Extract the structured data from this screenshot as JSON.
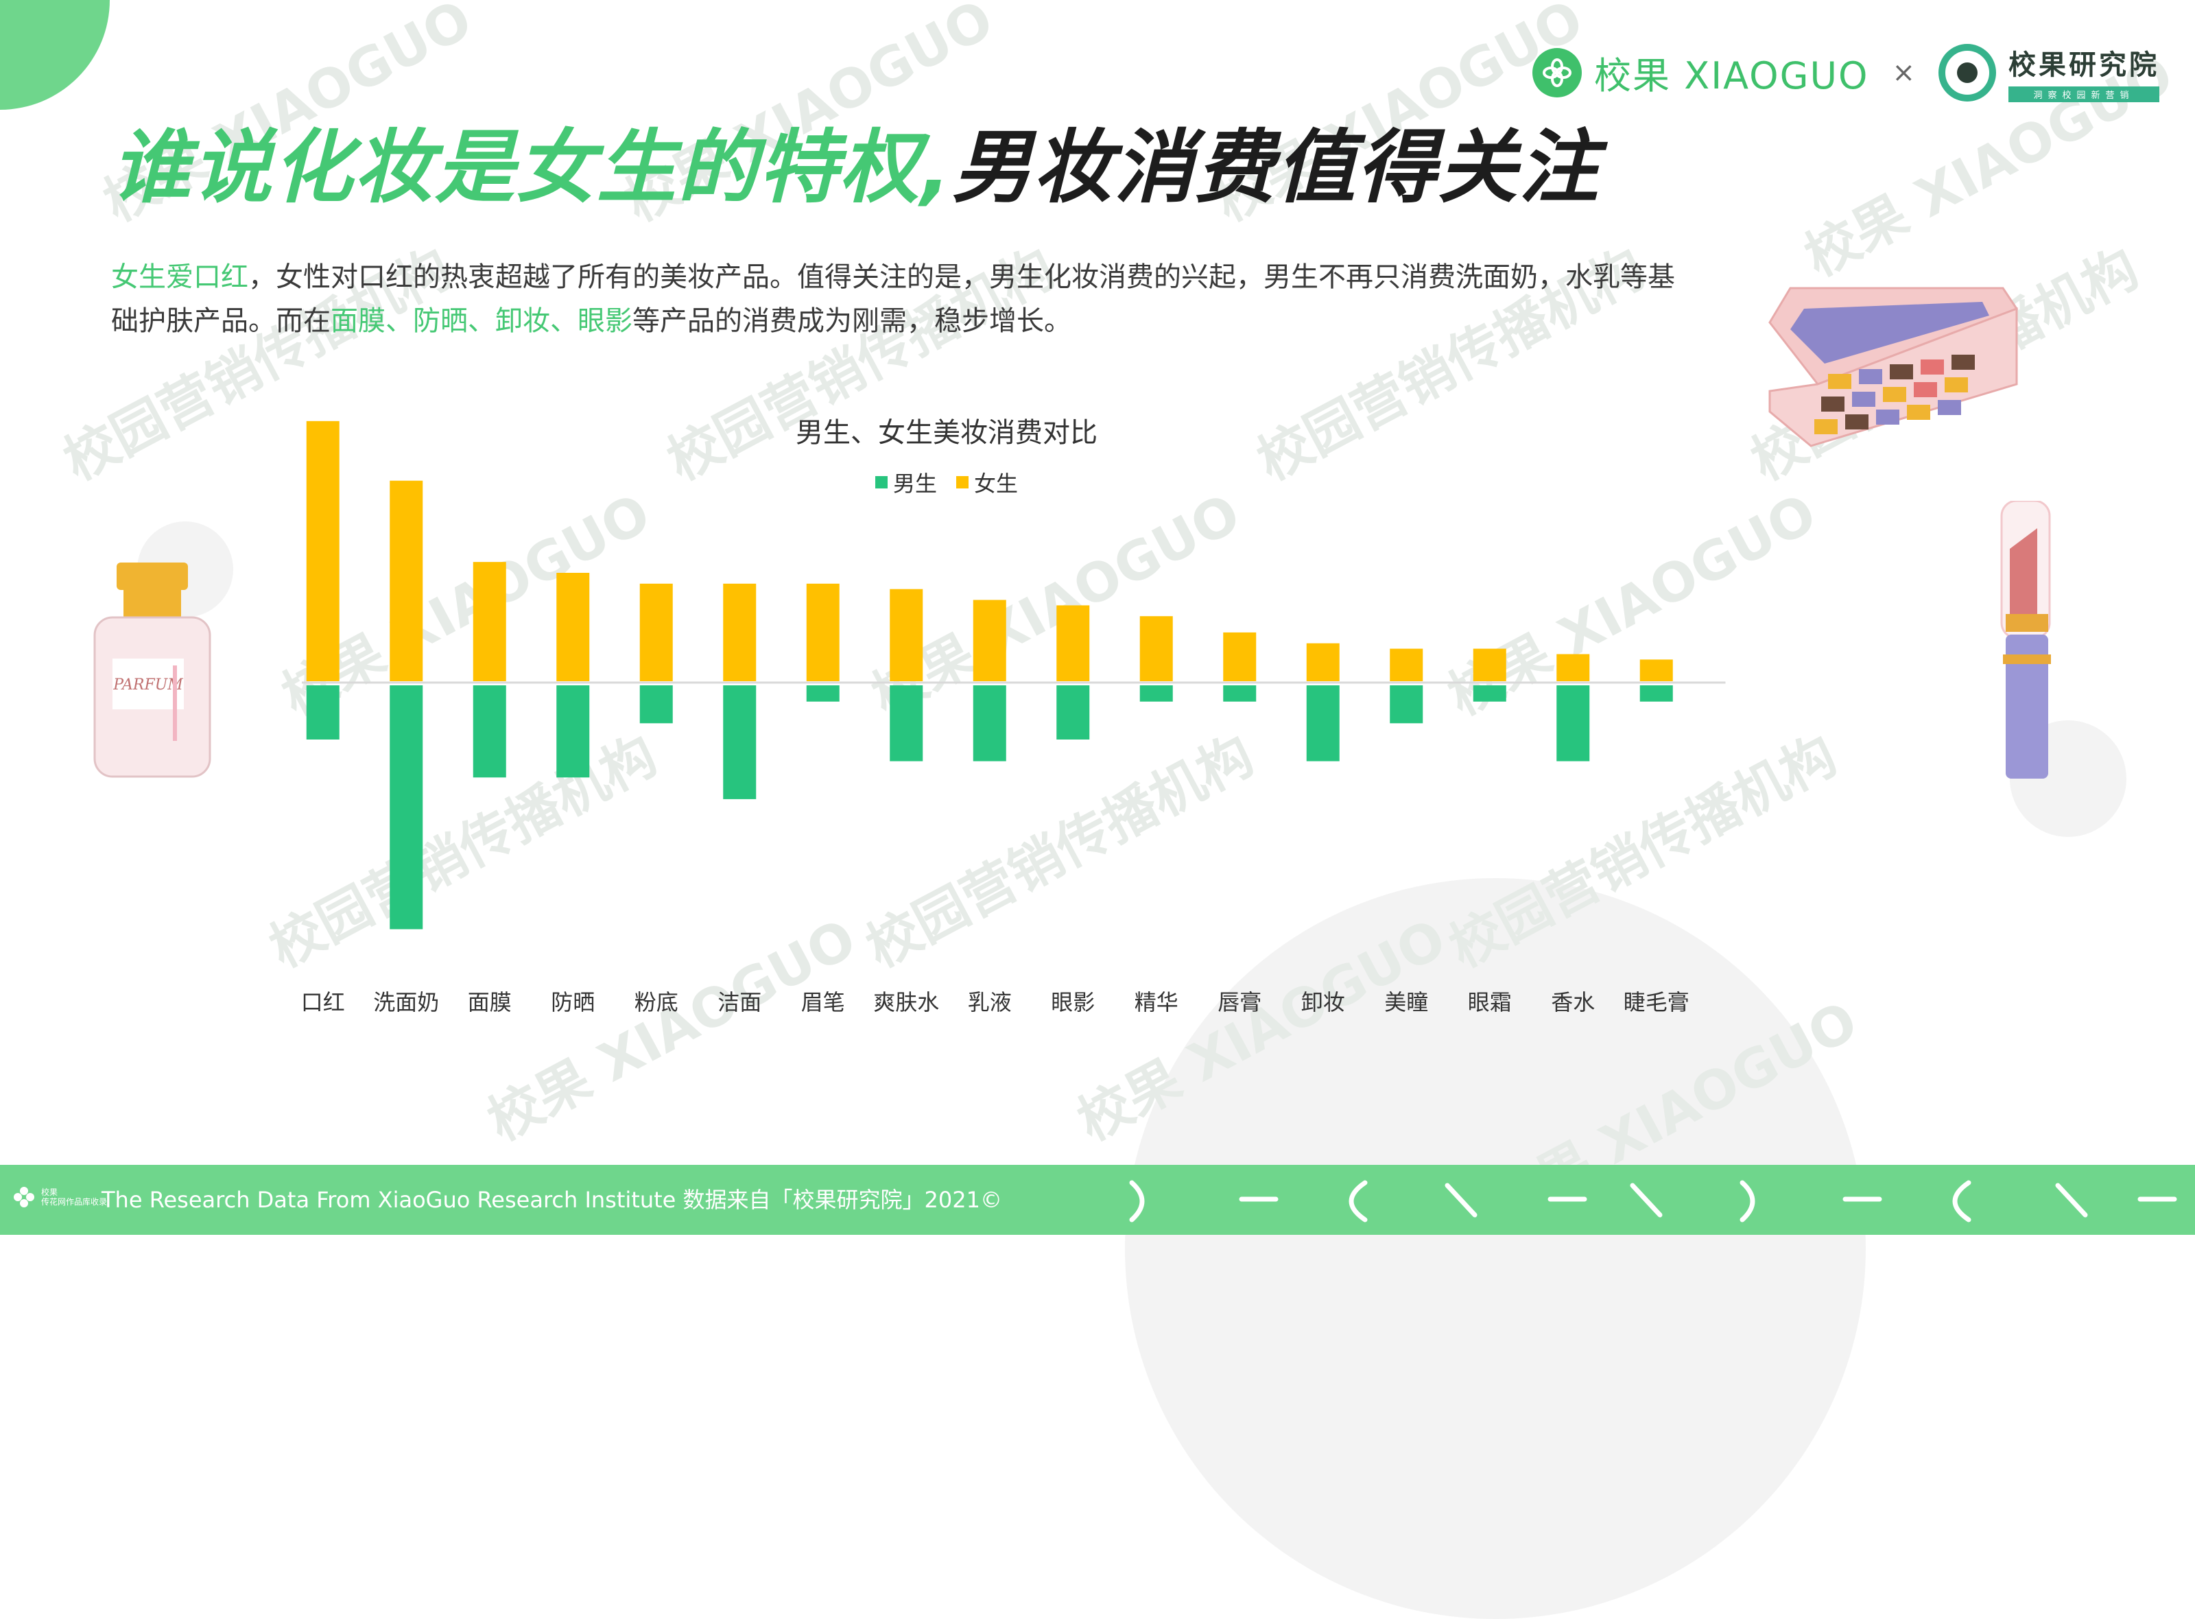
{
  "branding": {
    "logo_name": "校果 XIAOGUO",
    "separator": "×",
    "partner_name": "校果研究院",
    "partner_tagline": "洞察校园新营销",
    "watermark_cn": "校园营销传播机构",
    "watermark_en": "校果 XIAOGUO"
  },
  "title": {
    "part1": "谁说化妆是女生的特权,",
    "part2": "男妆消费值得关注"
  },
  "paragraph": {
    "s1": "女生爱口红",
    "s2": "，女性对口红的热衷超越了所有的美妆产品。值得关注的是，男生化妆消费的兴起，男生不再只消费洗面奶，水乳等基础护肤产品。而在",
    "s3": "面膜、防晒、卸妆、眼影",
    "s4": "等产品的消费成为刚需，稳步增长。"
  },
  "illustrations": {
    "perfume_label": "PARFUM"
  },
  "chart_data": {
    "type": "bar",
    "title": "男生、女生美妆消费对比",
    "categories": [
      "口红",
      "洗面奶",
      "面膜",
      "防晒",
      "粉底",
      "洁面",
      "眉笔",
      "爽肤水",
      "乳液",
      "眼影",
      "精华",
      "唇膏",
      "卸妆",
      "美瞳",
      "眼霜",
      "香水",
      "睫毛膏"
    ],
    "series": [
      {
        "name": "男生",
        "color": "#27c47e",
        "values": [
          -10,
          -45,
          -17,
          -17,
          -7,
          -21,
          -3,
          -14,
          -14,
          -10,
          -3,
          -3,
          -14,
          -7,
          -3,
          -14,
          -3
        ]
      },
      {
        "name": "女生",
        "color": "#ffc000",
        "values": [
          48,
          37,
          22,
          20,
          18,
          18,
          18,
          17,
          15,
          14,
          12,
          9,
          7,
          6,
          6,
          5,
          4
        ]
      }
    ],
    "legend_position": "top-center",
    "grid": false,
    "baseline": 0
  },
  "footer": {
    "logo_text": "校果",
    "logo_subtext": "传花网作品库收录",
    "text": "The Research Data  From XiaoGuo Research Institute 数据来自「校果研究院」2021©"
  }
}
